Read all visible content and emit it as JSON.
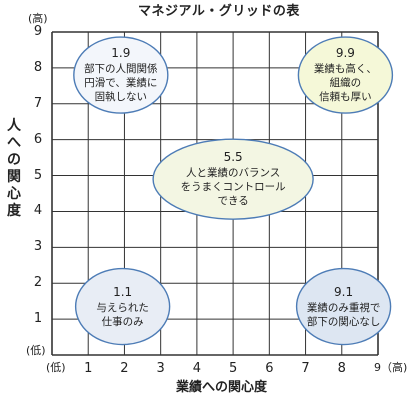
{
  "title": "マネジアル・グリッドの表",
  "x_axis": {
    "label": "業績への関心度",
    "ticks": [
      "1",
      "2",
      "3",
      "4",
      "5",
      "6",
      "7",
      "8",
      "9"
    ],
    "low": "(低)",
    "high": "9（高)"
  },
  "y_axis": {
    "label": "人への関心度",
    "ticks": [
      "1",
      "2",
      "3",
      "4",
      "5",
      "6",
      "7",
      "8",
      "9"
    ],
    "low": "(低)",
    "high": "(高)"
  },
  "styles": [
    {
      "score": "1.9",
      "text": [
        "部下の人間関係",
        "円滑で、業績に",
        "固執しない"
      ],
      "x": 1.9,
      "y": 7.8,
      "fill": "#f3f6fb",
      "stroke": "#4d7cb6"
    },
    {
      "score": "9.9",
      "text": [
        "業績も高く、",
        "組織の",
        "信頼も厚い"
      ],
      "x": 8.1,
      "y": 7.8,
      "fill": "#f5f8d8",
      "stroke": "#4d7cb6"
    },
    {
      "score": "5.5",
      "text": [
        "人と業績のバランス",
        "をうまくコントロール",
        "できる"
      ],
      "x": 5.0,
      "y": 4.9,
      "fill": "#f3f6e3",
      "stroke": "#4d7cb6"
    },
    {
      "score": "1.1",
      "text": [
        "与えられた",
        "仕事のみ"
      ],
      "x": 1.95,
      "y": 1.35,
      "fill": "#e8edf5",
      "stroke": "#4d7cb6"
    },
    {
      "score": "9.1",
      "text": [
        "業績のみ重視で",
        "部下の関心なし"
      ],
      "x": 8.05,
      "y": 1.35,
      "fill": "#dde6f2",
      "stroke": "#4d7cb6"
    }
  ]
}
